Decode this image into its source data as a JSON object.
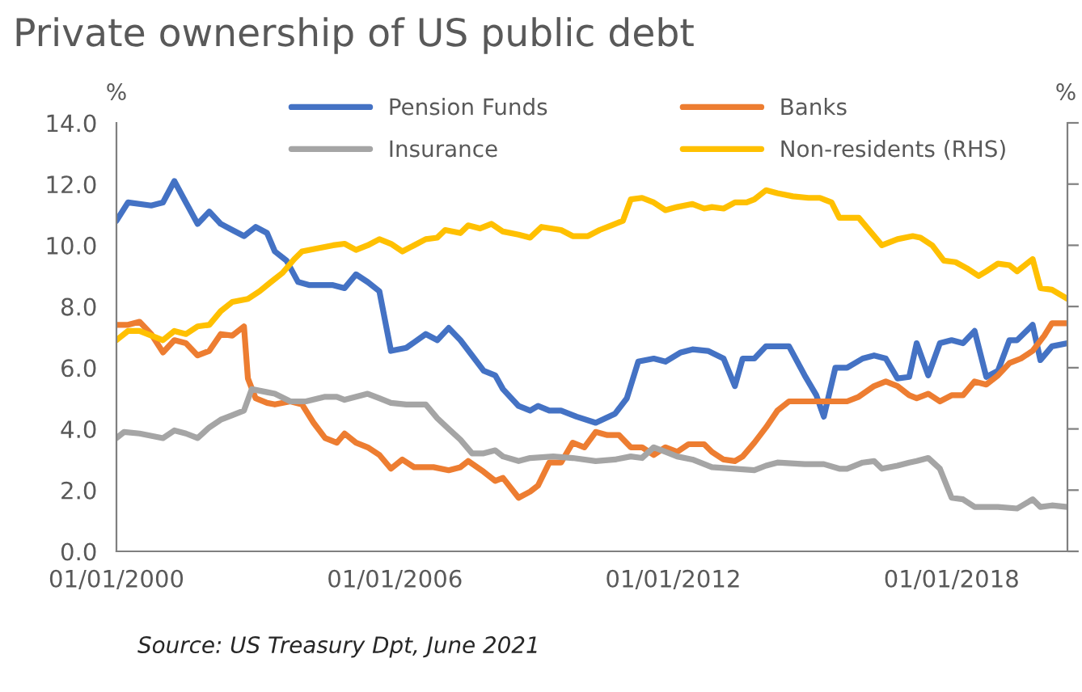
{
  "chart_data": {
    "type": "line",
    "title": "Private ownership of US public debt",
    "ylabel": "%",
    "y2label": "%",
    "xlim": [
      "2000-01",
      "2020-07"
    ],
    "xticks": [
      {
        "value": "2000-01-01",
        "label": "01/01/2000"
      },
      {
        "value": "2006-01-01",
        "label": "01/01/2006"
      },
      {
        "value": "2012-01-01",
        "label": "01/01/2012"
      },
      {
        "value": "2018-01-01",
        "label": "01/01/2018"
      }
    ],
    "ylim": [
      0,
      14
    ],
    "yticks": [
      {
        "value": 0,
        "label": "0.0"
      },
      {
        "value": 2,
        "label": "2.0"
      },
      {
        "value": 4,
        "label": "4.0"
      },
      {
        "value": 6,
        "label": "6.0"
      },
      {
        "value": 8,
        "label": "8.0"
      },
      {
        "value": 10,
        "label": "10.0"
      },
      {
        "value": 12,
        "label": "12.0"
      },
      {
        "value": 14,
        "label": "14.0"
      }
    ],
    "grid": false,
    "legend": "top",
    "marker": "none",
    "line_style": "solid",
    "annotations": [
      "Source: US Treasury Dpt, June 2021"
    ],
    "series": [
      {
        "name": "Pension Funds",
        "color": "#4472c4",
        "x": [
          "2000-01",
          "2000-04",
          "2000-10",
          "2001-01",
          "2001-04",
          "2001-07",
          "2001-10",
          "2002-01",
          "2002-04",
          "2002-07",
          "2002-10",
          "2003-01",
          "2003-04",
          "2003-06",
          "2003-09",
          "2003-12",
          "2004-03",
          "2004-09",
          "2004-12",
          "2005-03",
          "2005-06",
          "2005-09",
          "2005-12",
          "2006-04",
          "2006-09",
          "2006-12",
          "2007-03",
          "2007-06",
          "2007-09",
          "2007-12",
          "2008-03",
          "2008-05",
          "2008-09",
          "2008-12",
          "2009-02",
          "2009-05",
          "2009-08",
          "2009-12",
          "2010-05",
          "2010-10",
          "2011-01",
          "2011-04",
          "2011-08",
          "2011-11",
          "2012-03",
          "2012-06",
          "2012-10",
          "2013-02",
          "2013-05",
          "2013-07",
          "2013-10",
          "2014-01",
          "2014-04",
          "2014-07",
          "2014-11",
          "2015-02",
          "2015-04",
          "2015-07",
          "2015-10",
          "2016-02",
          "2016-05",
          "2016-08",
          "2016-11",
          "2017-02",
          "2017-04",
          "2017-07",
          "2017-10",
          "2018-01",
          "2018-04",
          "2018-07",
          "2018-10",
          "2019-01",
          "2019-04",
          "2019-06",
          "2019-10",
          "2019-12",
          "2020-03",
          "2020-07"
        ],
        "values": [
          10.8,
          11.4,
          11.3,
          11.4,
          12.1,
          11.4,
          10.7,
          11.1,
          10.7,
          10.5,
          10.3,
          10.6,
          10.4,
          9.8,
          9.5,
          8.8,
          8.7,
          8.7,
          8.6,
          9.05,
          8.8,
          8.5,
          6.55,
          6.65,
          7.1,
          6.9,
          7.3,
          6.9,
          6.4,
          5.9,
          5.75,
          5.3,
          4.75,
          4.6,
          4.75,
          4.6,
          4.6,
          4.4,
          4.2,
          4.5,
          5.0,
          6.2,
          6.3,
          6.2,
          6.5,
          6.6,
          6.55,
          6.3,
          5.4,
          6.3,
          6.3,
          6.7,
          6.7,
          6.7,
          5.75,
          5.1,
          4.4,
          6.0,
          6.0,
          6.3,
          6.4,
          6.3,
          5.65,
          5.7,
          6.8,
          5.75,
          6.8,
          6.9,
          6.8,
          7.2,
          5.7,
          5.9,
          6.9,
          6.9,
          7.4,
          6.25,
          6.7,
          6.8
        ]
      },
      {
        "name": "Banks",
        "color": "#ed7d31",
        "x": [
          "2000-01",
          "2000-04",
          "2000-07",
          "2000-10",
          "2001-01",
          "2001-04",
          "2001-07",
          "2001-10",
          "2002-01",
          "2002-04",
          "2002-07",
          "2002-10",
          "2002-11",
          "2003-01",
          "2003-04",
          "2003-06",
          "2003-10",
          "2004-01",
          "2004-04",
          "2004-07",
          "2004-10",
          "2004-12",
          "2005-03",
          "2005-06",
          "2005-09",
          "2005-12",
          "2006-03",
          "2006-06",
          "2006-11",
          "2007-03",
          "2007-06",
          "2007-08",
          "2007-12",
          "2008-03",
          "2008-05",
          "2008-09",
          "2008-12",
          "2009-02",
          "2009-05",
          "2009-08",
          "2009-11",
          "2010-02",
          "2010-05",
          "2010-08",
          "2010-11",
          "2011-02",
          "2011-05",
          "2011-08",
          "2011-11",
          "2012-02",
          "2012-05",
          "2012-09",
          "2012-11",
          "2013-02",
          "2013-05",
          "2013-07",
          "2013-10",
          "2014-01",
          "2014-04",
          "2014-07",
          "2014-11",
          "2015-02",
          "2015-06",
          "2015-10",
          "2016-01",
          "2016-05",
          "2016-08",
          "2016-11",
          "2017-02",
          "2017-04",
          "2017-07",
          "2017-10",
          "2018-01",
          "2018-04",
          "2018-07",
          "2018-10",
          "2019-01",
          "2019-04",
          "2019-07",
          "2019-10",
          "2020-01",
          "2020-03",
          "2020-07"
        ],
        "values": [
          7.4,
          7.4,
          7.5,
          7.1,
          6.5,
          6.9,
          6.8,
          6.4,
          6.55,
          7.1,
          7.05,
          7.35,
          5.65,
          5.0,
          4.85,
          4.8,
          4.9,
          4.8,
          4.2,
          3.7,
          3.55,
          3.85,
          3.55,
          3.4,
          3.15,
          2.7,
          3.0,
          2.75,
          2.75,
          2.65,
          2.75,
          2.95,
          2.6,
          2.3,
          2.4,
          1.75,
          1.95,
          2.15,
          2.9,
          2.9,
          3.55,
          3.4,
          3.9,
          3.8,
          3.8,
          3.4,
          3.4,
          3.15,
          3.4,
          3.25,
          3.5,
          3.5,
          3.25,
          3.0,
          2.95,
          3.1,
          3.55,
          4.05,
          4.6,
          4.9,
          4.9,
          4.9,
          4.9,
          4.9,
          5.05,
          5.4,
          5.55,
          5.4,
          5.1,
          5.0,
          5.15,
          4.9,
          5.1,
          5.1,
          5.55,
          5.45,
          5.75,
          6.15,
          6.3,
          6.55,
          7.05,
          7.45,
          7.45
        ]
      },
      {
        "name": "Insurance",
        "color": "#a5a5a5",
        "x": [
          "2000-01",
          "2000-03",
          "2000-07",
          "2001-01",
          "2001-04",
          "2001-07",
          "2001-10",
          "2002-01",
          "2002-04",
          "2002-07",
          "2002-10",
          "2002-12",
          "2003-04",
          "2003-06",
          "2003-10",
          "2004-02",
          "2004-07",
          "2004-10",
          "2004-12",
          "2005-06",
          "2005-09",
          "2005-12",
          "2006-04",
          "2006-09",
          "2006-12",
          "2007-03",
          "2007-06",
          "2007-09",
          "2007-12",
          "2008-03",
          "2008-05",
          "2008-09",
          "2008-12",
          "2009-06",
          "2009-11",
          "2010-05",
          "2010-10",
          "2011-02",
          "2011-05",
          "2011-08",
          "2011-11",
          "2012-02",
          "2012-06",
          "2012-11",
          "2013-05",
          "2013-10",
          "2014-01",
          "2014-04",
          "2014-11",
          "2015-04",
          "2015-08",
          "2015-10",
          "2016-02",
          "2016-05",
          "2016-07",
          "2016-11",
          "2017-02",
          "2017-04",
          "2017-07",
          "2017-10",
          "2018-01",
          "2018-04",
          "2018-07",
          "2019-01",
          "2019-06",
          "2019-10",
          "2019-12",
          "2020-03",
          "2020-07"
        ],
        "values": [
          3.7,
          3.9,
          3.85,
          3.7,
          3.95,
          3.85,
          3.7,
          4.05,
          4.3,
          4.45,
          4.6,
          5.3,
          5.2,
          5.15,
          4.9,
          4.9,
          5.05,
          5.05,
          4.95,
          5.15,
          5.0,
          4.85,
          4.8,
          4.8,
          4.35,
          4.0,
          3.65,
          3.2,
          3.2,
          3.3,
          3.1,
          2.95,
          3.05,
          3.1,
          3.05,
          2.95,
          3.0,
          3.1,
          3.05,
          3.4,
          3.25,
          3.1,
          3.0,
          2.75,
          2.7,
          2.65,
          2.8,
          2.9,
          2.85,
          2.85,
          2.7,
          2.7,
          2.9,
          2.95,
          2.7,
          2.8,
          2.9,
          2.95,
          3.05,
          2.7,
          1.75,
          1.7,
          1.45,
          1.45,
          1.4,
          1.7,
          1.45,
          1.5,
          1.45
        ]
      },
      {
        "name": "Non-residents (RHS)",
        "color": "#ffc000",
        "x": [
          "2000-01",
          "2000-04",
          "2000-07",
          "2001-01",
          "2001-04",
          "2001-07",
          "2001-10",
          "2002-01",
          "2002-04",
          "2002-07",
          "2002-11",
          "2003-02",
          "2003-05",
          "2003-08",
          "2003-11",
          "2004-01",
          "2004-05",
          "2004-09",
          "2004-12",
          "2005-03",
          "2005-06",
          "2005-09",
          "2005-12",
          "2006-03",
          "2006-06",
          "2006-09",
          "2006-12",
          "2007-02",
          "2007-06",
          "2007-08",
          "2007-11",
          "2008-02",
          "2008-05",
          "2008-09",
          "2008-12",
          "2009-03",
          "2009-08",
          "2009-11",
          "2010-03",
          "2010-06",
          "2010-09",
          "2010-12",
          "2011-02",
          "2011-05",
          "2011-08",
          "2011-11",
          "2012-02",
          "2012-06",
          "2012-09",
          "2012-11",
          "2013-02",
          "2013-05",
          "2013-08",
          "2013-10",
          "2014-01",
          "2014-04",
          "2014-08",
          "2014-12",
          "2015-03",
          "2015-06",
          "2015-08",
          "2016-01",
          "2016-04",
          "2016-07",
          "2016-11",
          "2017-03",
          "2017-05",
          "2017-08",
          "2017-11",
          "2018-02",
          "2018-05",
          "2018-08",
          "2018-10",
          "2019-01",
          "2019-04",
          "2019-06",
          "2019-10",
          "2019-12",
          "2020-03",
          "2020-07"
        ],
        "values": [
          6.9,
          7.2,
          7.2,
          6.9,
          7.2,
          7.1,
          7.35,
          7.4,
          7.85,
          8.15,
          8.25,
          8.5,
          8.8,
          9.1,
          9.55,
          9.8,
          9.9,
          10.0,
          10.05,
          9.85,
          10.0,
          10.2,
          10.05,
          9.8,
          10.0,
          10.2,
          10.25,
          10.5,
          10.4,
          10.65,
          10.55,
          10.7,
          10.45,
          10.35,
          10.25,
          10.6,
          10.5,
          10.3,
          10.3,
          10.5,
          10.65,
          10.8,
          11.5,
          11.55,
          11.4,
          11.15,
          11.25,
          11.35,
          11.2,
          11.25,
          11.2,
          11.4,
          11.4,
          11.5,
          11.8,
          11.7,
          11.6,
          11.55,
          11.55,
          11.4,
          10.9,
          10.9,
          10.45,
          10.0,
          10.2,
          10.3,
          10.25,
          10.0,
          9.5,
          9.45,
          9.25,
          9.0,
          9.15,
          9.4,
          9.35,
          9.15,
          9.55,
          8.6,
          8.55,
          8.25
        ]
      }
    ]
  }
}
